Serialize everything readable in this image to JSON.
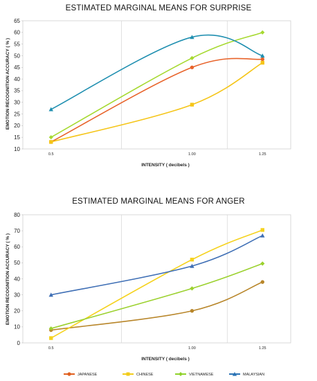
{
  "legend": {
    "items": [
      {
        "name": "JAPANESE",
        "color": "#e0601f",
        "marker": "circle"
      },
      {
        "name": "CHINESE",
        "color": "#f2cc1a",
        "marker": "square"
      },
      {
        "name": "VIETNAMESE",
        "color": "#8fd12a",
        "marker": "diamond"
      },
      {
        "name": "MALAYSIAN",
        "color": "#2a73b5",
        "marker": "triangle"
      }
    ]
  },
  "chart_data": [
    {
      "type": "line",
      "title": "ESTIMATED MARGINAL MEANS FOR SURPRISE",
      "xlabel": "INTENSITY ( decibels )",
      "ylabel": "EMOTION RECOGNITION ACCURACY ( % )",
      "x": [
        0.5,
        1.0,
        1.25
      ],
      "xticks": [
        "0.5",
        "1.00",
        "1.25"
      ],
      "xlim": [
        0.4,
        1.35
      ],
      "ylim": [
        10,
        65
      ],
      "yticks": [
        10,
        15,
        20,
        25,
        30,
        35,
        40,
        45,
        50,
        55,
        60,
        65
      ],
      "grid": "vertical",
      "series": [
        {
          "name": "JAPANESE",
          "color": "#e8632a",
          "marker": "circle",
          "values": [
            13,
            45,
            48.5
          ]
        },
        {
          "name": "CHINESE",
          "color": "#f5c518",
          "marker": "square",
          "values": [
            13,
            29,
            47
          ]
        },
        {
          "name": "VIETNAMESE",
          "color": "#a6d930",
          "marker": "diamond",
          "values": [
            15,
            49,
            60
          ]
        },
        {
          "name": "MALAYSIAN",
          "color": "#1f8fb0",
          "marker": "triangle",
          "values": [
            27,
            58,
            50
          ]
        }
      ]
    },
    {
      "type": "line",
      "title": "ESTIMATED MARGINAL MEANS FOR ANGER",
      "xlabel": "INTENSITY ( decibels )",
      "ylabel": "EMOTION RECOGNITION ACCURACY ( % )",
      "x": [
        0.5,
        1.0,
        1.25
      ],
      "xticks": [
        "0.5",
        "1.00",
        "1.25"
      ],
      "xlim": [
        0.4,
        1.35
      ],
      "ylim": [
        0,
        80
      ],
      "yticks": [
        0,
        10,
        20,
        30,
        40,
        50,
        60,
        70,
        80
      ],
      "grid": "vertical",
      "series": [
        {
          "name": "JAPANESE",
          "color": "#b8862a",
          "marker": "circle",
          "values": [
            8,
            20,
            38
          ]
        },
        {
          "name": "CHINESE",
          "color": "#f5d21e",
          "marker": "square",
          "values": [
            3,
            52,
            70.5
          ]
        },
        {
          "name": "VIETNAMESE",
          "color": "#9bd12e",
          "marker": "diamond",
          "values": [
            9,
            34,
            49.5
          ]
        },
        {
          "name": "MALAYSIAN",
          "color": "#3f6fb5",
          "marker": "triangle",
          "values": [
            30,
            48,
            67
          ]
        }
      ]
    }
  ]
}
